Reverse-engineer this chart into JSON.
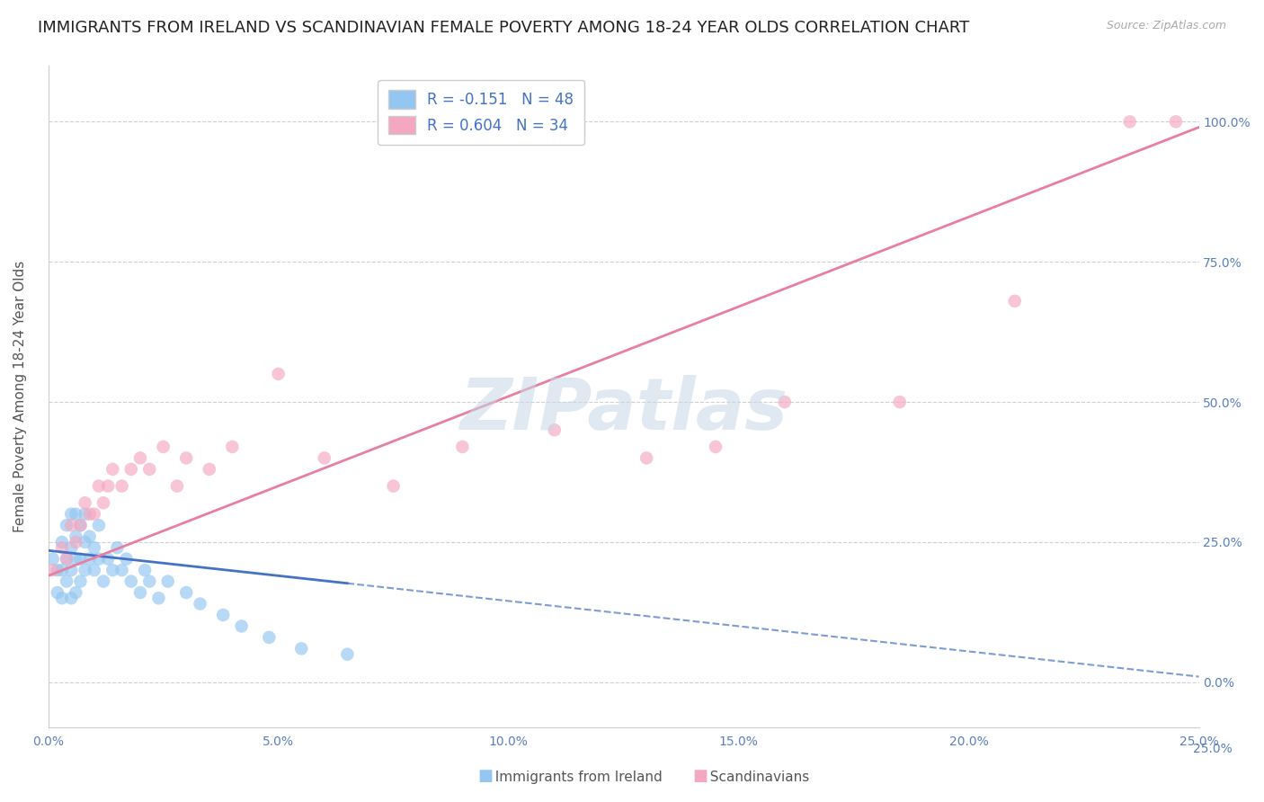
{
  "title": "IMMIGRANTS FROM IRELAND VS SCANDINAVIAN FEMALE POVERTY AMONG 18-24 YEAR OLDS CORRELATION CHART",
  "source": "Source: ZipAtlas.com",
  "ylabel": "Female Poverty Among 18-24 Year Olds",
  "xlim": [
    0.0,
    0.25
  ],
  "ylim": [
    -0.08,
    1.1
  ],
  "yticks": [
    0.0,
    0.25,
    0.5,
    0.75,
    1.0
  ],
  "ytick_labels": [
    "0.0%",
    "25.0%",
    "50.0%",
    "75.0%",
    "100.0%"
  ],
  "xticks": [
    0.0,
    0.05,
    0.1,
    0.15,
    0.2,
    0.25
  ],
  "xtick_labels": [
    "0.0%",
    "5.0%",
    "10.0%",
    "15.0%",
    "20.0%",
    "25.0%"
  ],
  "ireland_color": "#93c6f0",
  "scandinavian_color": "#f4a7c0",
  "ireland_line_color": "#4472c4",
  "scandinavian_line_color": "#e87fa0",
  "ireland_R": -0.151,
  "ireland_N": 48,
  "scandinavian_R": 0.604,
  "scandinavian_N": 34,
  "legend_label_ireland": "Immigrants from Ireland",
  "legend_label_scandinavian": "Scandinavians",
  "watermark": "ZIPatlas",
  "title_fontsize": 13,
  "axis_label_fontsize": 11,
  "tick_label_color": "#5b7fbe",
  "ireland_x": [
    0.001,
    0.002,
    0.002,
    0.003,
    0.003,
    0.003,
    0.004,
    0.004,
    0.004,
    0.005,
    0.005,
    0.005,
    0.005,
    0.006,
    0.006,
    0.006,
    0.006,
    0.007,
    0.007,
    0.007,
    0.008,
    0.008,
    0.008,
    0.009,
    0.009,
    0.01,
    0.01,
    0.011,
    0.011,
    0.012,
    0.013,
    0.014,
    0.015,
    0.016,
    0.017,
    0.018,
    0.02,
    0.021,
    0.022,
    0.024,
    0.026,
    0.03,
    0.033,
    0.038,
    0.042,
    0.048,
    0.055,
    0.065
  ],
  "ireland_y": [
    0.22,
    0.16,
    0.2,
    0.15,
    0.2,
    0.25,
    0.18,
    0.22,
    0.28,
    0.15,
    0.2,
    0.24,
    0.3,
    0.16,
    0.22,
    0.26,
    0.3,
    0.18,
    0.22,
    0.28,
    0.2,
    0.25,
    0.3,
    0.22,
    0.26,
    0.2,
    0.24,
    0.22,
    0.28,
    0.18,
    0.22,
    0.2,
    0.24,
    0.2,
    0.22,
    0.18,
    0.16,
    0.2,
    0.18,
    0.15,
    0.18,
    0.16,
    0.14,
    0.12,
    0.1,
    0.08,
    0.06,
    0.05
  ],
  "scandinavian_x": [
    0.001,
    0.003,
    0.004,
    0.005,
    0.006,
    0.007,
    0.008,
    0.009,
    0.01,
    0.011,
    0.012,
    0.013,
    0.014,
    0.016,
    0.018,
    0.02,
    0.022,
    0.025,
    0.028,
    0.03,
    0.035,
    0.04,
    0.05,
    0.06,
    0.075,
    0.09,
    0.11,
    0.13,
    0.145,
    0.16,
    0.185,
    0.21,
    0.235,
    0.245
  ],
  "scandinavian_y": [
    0.2,
    0.24,
    0.22,
    0.28,
    0.25,
    0.28,
    0.32,
    0.3,
    0.3,
    0.35,
    0.32,
    0.35,
    0.38,
    0.35,
    0.38,
    0.4,
    0.38,
    0.42,
    0.35,
    0.4,
    0.38,
    0.42,
    0.55,
    0.4,
    0.35,
    0.42,
    0.45,
    0.4,
    0.42,
    0.5,
    0.5,
    0.68,
    1.0,
    1.0
  ]
}
